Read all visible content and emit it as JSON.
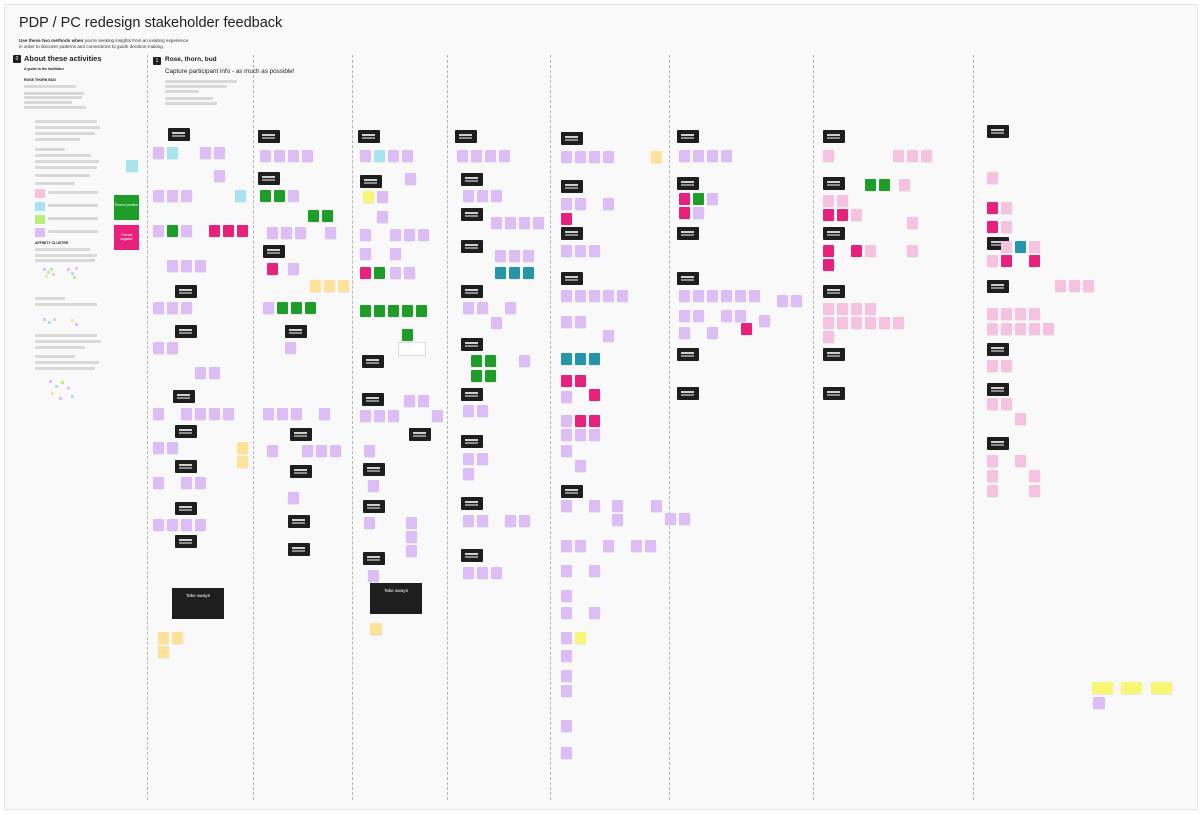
{
  "board": {
    "title": "PDP / PC redesign stakeholder feedback",
    "subtitle_bold": "Use these two methods when",
    "subtitle_rest": " you're seeking insights from an existing experience",
    "subtitle_line2": "in order to discover patterns and connections to guide decision-making."
  },
  "about": {
    "number": "0",
    "title": "About these activities",
    "guide_label": "A guide to the facilitator",
    "rose_heading": "ROSE THORN BUD",
    "affinity_heading": "AFFINITY CLUSTER",
    "legend_roses": "Roses/ positive",
    "legend_thorns": "Thorns/ negative"
  },
  "section1": {
    "number": "1",
    "title": "Rose, thorn, bud",
    "capture": "Capture participant info - as much as possible!"
  },
  "takeaways": {
    "left_label": "Take aways",
    "right_label": "Take aways"
  },
  "colors": {
    "purple_note": "#dcbdf6",
    "rose_note": "#e8227c",
    "green_note": "#1f9d29",
    "blue_note": "#a8e3f0",
    "orange_note": "#ffe29a",
    "yellow_note": "#f7f775",
    "teal_note": "#2595a9",
    "header_card": "#1e1e1e",
    "pink_note": "#f5c2df"
  }
}
